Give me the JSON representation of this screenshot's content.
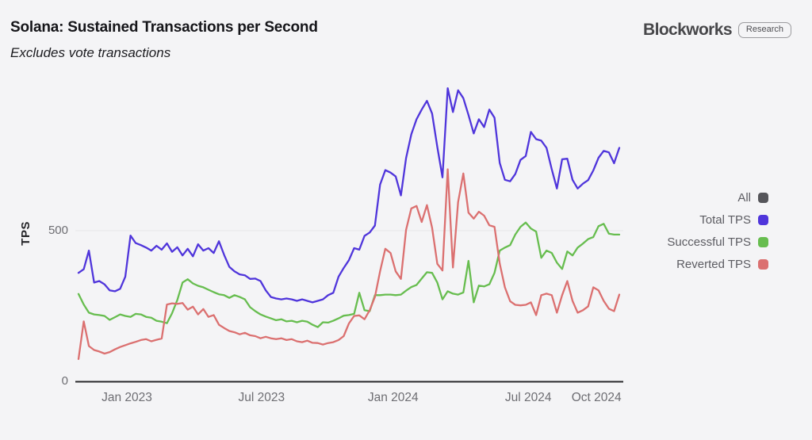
{
  "header": {
    "title": "Solana: Sustained Transactions per Second",
    "subtitle": "Excludes vote transactions",
    "brand": {
      "name": "Blockworks",
      "badge": "Research"
    }
  },
  "legend": {
    "items": [
      {
        "key": "all",
        "label": "All",
        "color": "#55555a"
      },
      {
        "key": "total-tps",
        "label": "Total TPS",
        "color": "#4f35db"
      },
      {
        "key": "successful-tps",
        "label": "Successful TPS",
        "color": "#67bd4f"
      },
      {
        "key": "reverted-tps",
        "label": "Reverted TPS",
        "color": "#db7070"
      }
    ]
  },
  "chart_data": {
    "type": "line",
    "title": "Solana: Sustained Transactions per Second",
    "subtitle": "Excludes vote transactions",
    "xlabel": "",
    "ylabel": "TPS",
    "ylim": [
      0,
      1000
    ],
    "grid": "horizontal-at-500-only",
    "legend_position": "right",
    "frequency_note": "weekly points, late Oct 2022 through early Nov 2024",
    "y_ticks": [
      {
        "value": 500,
        "label": "500"
      },
      {
        "value": 0,
        "label": "0"
      }
    ],
    "x_ticks": [
      {
        "label": "Jan 2023",
        "index": 9.3
      },
      {
        "label": "Jul 2023",
        "index": 35.2
      },
      {
        "label": "Jan 2024",
        "index": 60.5
      },
      {
        "label": "Jul 2024",
        "index": 86.5
      },
      {
        "label": "Oct 2024",
        "index": 99.6
      }
    ],
    "series": [
      {
        "name": "Total TPS",
        "key": "total-tps",
        "color": "#4f35db",
        "values": [
          360,
          372,
          434,
          328,
          333,
          322,
          302,
          299,
          307,
          347,
          484,
          459,
          452,
          444,
          434,
          450,
          437,
          458,
          430,
          445,
          418,
          440,
          415,
          455,
          434,
          442,
          426,
          465,
          420,
          380,
          365,
          355,
          352,
          340,
          341,
          333,
          302,
          280,
          275,
          272,
          275,
          272,
          267,
          272,
          267,
          262,
          267,
          272,
          286,
          294,
          347,
          376,
          402,
          442,
          437,
          483,
          494,
          517,
          653,
          701,
          693,
          680,
          617,
          741,
          820,
          870,
          902,
          931,
          889,
          778,
          677,
          973,
          894,
          966,
          940,
          884,
          823,
          870,
          844,
          902,
          875,
          725,
          669,
          664,
          688,
          735,
          748,
          828,
          804,
          799,
          775,
          704,
          640,
          737,
          739,
          669,
          640,
          656,
          668,
          700,
          742,
          765,
          760,
          724,
          775
        ]
      },
      {
        "name": "Successful TPS",
        "key": "successful-tps",
        "color": "#67bd4f",
        "values": [
          290,
          255,
          228,
          222,
          220,
          217,
          204,
          213,
          222,
          217,
          214,
          224,
          222,
          214,
          211,
          201,
          198,
          193,
          226,
          270,
          328,
          339,
          325,
          317,
          312,
          304,
          296,
          289,
          286,
          277,
          286,
          280,
          272,
          246,
          233,
          222,
          215,
          209,
          203,
          206,
          199,
          201,
          196,
          201,
          198,
          188,
          180,
          196,
          195,
          201,
          209,
          218,
          220,
          224,
          294,
          236,
          233,
          286,
          286,
          288,
          288,
          286,
          288,
          301,
          313,
          320,
          341,
          362,
          360,
          328,
          272,
          299,
          291,
          288,
          295,
          400,
          262,
          318,
          315,
          322,
          360,
          434,
          444,
          452,
          487,
          513,
          527,
          507,
          497,
          410,
          434,
          426,
          394,
          373,
          431,
          418,
          444,
          457,
          472,
          479,
          515,
          523,
          490,
          487,
          487
        ]
      },
      {
        "name": "Reverted TPS",
        "key": "reverted-tps",
        "color": "#db7070",
        "values": [
          74,
          199,
          117,
          104,
          99,
          92,
          97,
          106,
          114,
          120,
          126,
          131,
          137,
          140,
          133,
          138,
          142,
          255,
          259,
          257,
          260,
          238,
          248,
          222,
          240,
          214,
          220,
          188,
          177,
          167,
          163,
          156,
          161,
          153,
          150,
          143,
          148,
          143,
          140,
          143,
          137,
          140,
          133,
          130,
          135,
          128,
          127,
          122,
          127,
          130,
          137,
          150,
          192,
          217,
          219,
          206,
          236,
          280,
          365,
          440,
          426,
          365,
          340,
          503,
          574,
          582,
          529,
          585,
          510,
          390,
          368,
          704,
          378,
          595,
          690,
          560,
          540,
          563,
          550,
          518,
          513,
          391,
          312,
          266,
          254,
          252,
          254,
          262,
          220,
          286,
          291,
          286,
          228,
          286,
          333,
          267,
          228,
          236,
          249,
          312,
          302,
          267,
          241,
          233,
          288
        ]
      }
    ]
  }
}
